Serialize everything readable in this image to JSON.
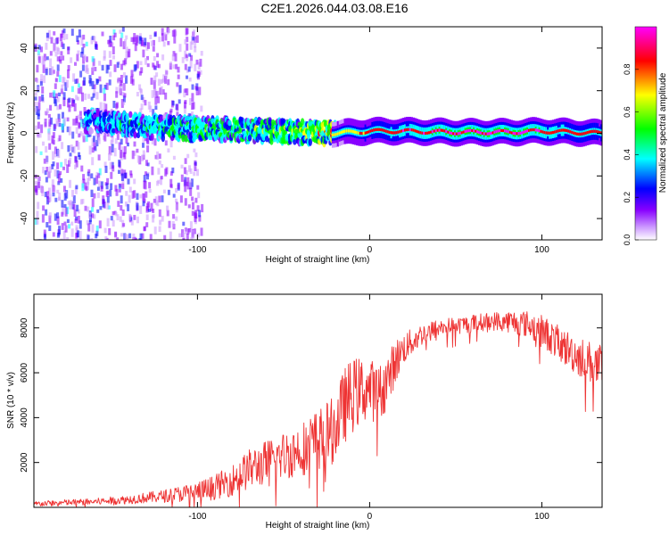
{
  "chart_data": [
    {
      "type": "heatmap",
      "title": "C2E1.2026.044.03.08.E16",
      "xlabel": "Height of straight line (km)",
      "ylabel": "Frequency (Hz)",
      "xlim": [
        -195,
        135
      ],
      "ylim": [
        -50,
        50
      ],
      "xticks": [
        -100,
        0,
        100
      ],
      "yticks": [
        -40,
        -20,
        0,
        20,
        40
      ],
      "colorbar": {
        "label": "Normalized spectral amplitude",
        "range": [
          0.0,
          1.0
        ],
        "ticks": [
          0.0,
          0.2,
          0.4,
          0.6,
          0.8
        ],
        "colors": [
          "#ffffff",
          "#cc99ff",
          "#8800ff",
          "#0000ff",
          "#00ffff",
          "#00ff00",
          "#ffff00",
          "#ff0000",
          "#ff00ff"
        ]
      },
      "features": [
        {
          "name": "broadband noise",
          "x_range": [
            -195,
            -98
          ],
          "freq_range": [
            -50,
            50
          ],
          "amplitude": 0.1
        },
        {
          "name": "dominant band noisy",
          "x": [
            -160,
            -130,
            -100,
            -70,
            -40,
            -20
          ],
          "freq": [
            6,
            3,
            2,
            1.5,
            0.5,
            0
          ],
          "amplitude": [
            0.3,
            0.35,
            0.4,
            0.4,
            0.45,
            0.6
          ]
        },
        {
          "name": "dominant band clean",
          "x": [
            -20,
            0,
            20,
            50,
            80,
            100,
            135
          ],
          "freq": [
            0,
            1,
            1,
            0.5,
            0.5,
            1,
            0
          ],
          "amplitude": [
            0.6,
            0.75,
            0.85,
            0.9,
            0.9,
            0.85,
            0.75
          ]
        }
      ]
    },
    {
      "type": "line",
      "xlabel": "Height of straight line (km)",
      "ylabel": "SNR (10 * v/v)",
      "xlim": [
        -195,
        135
      ],
      "ylim": [
        0,
        9500
      ],
      "xticks": [
        -100,
        0,
        100
      ],
      "yticks": [
        2000,
        4000,
        6000,
        8000
      ],
      "color": "#ee3333",
      "series": [
        {
          "name": "SNR",
          "x": [
            -195,
            -180,
            -160,
            -140,
            -120,
            -100,
            -90,
            -80,
            -70,
            -60,
            -50,
            -40,
            -30,
            -20,
            -15,
            -10,
            -5,
            0,
            5,
            10,
            15,
            20,
            30,
            40,
            50,
            60,
            70,
            80,
            90,
            100,
            110,
            120,
            135
          ],
          "values": [
            150,
            200,
            250,
            350,
            500,
            700,
            900,
            1200,
            1700,
            2000,
            2300,
            2600,
            3000,
            3500,
            4500,
            5000,
            5200,
            5300,
            5000,
            5600,
            6500,
            7100,
            7700,
            8000,
            8100,
            8200,
            8300,
            8300,
            8200,
            7900,
            7300,
            6800,
            6200
          ],
          "noise": [
            120,
            140,
            150,
            200,
            280,
            450,
            550,
            700,
            900,
            1000,
            1100,
            1200,
            1400,
            1500,
            1700,
            1700,
            1500,
            1400,
            1300,
            1200,
            1000,
            700,
            500,
            400,
            400,
            400,
            400,
            500,
            600,
            700,
            800,
            900,
            1000
          ]
        }
      ]
    }
  ]
}
